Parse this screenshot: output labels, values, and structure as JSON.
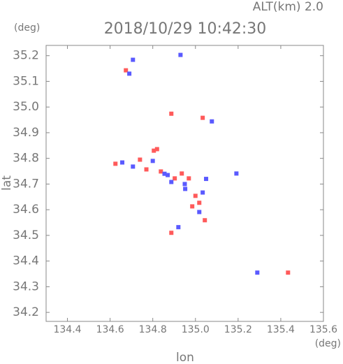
{
  "chart_data": {
    "type": "scatter",
    "title": "2018/10/29 10:42:30",
    "subtitle": "ALT(km)  2.0",
    "y_unit": "(deg)",
    "x_unit": "(deg)",
    "x_label": "lon",
    "y_label": "lat",
    "xlim": [
      134.3,
      135.6
    ],
    "ylim": [
      34.165,
      35.24
    ],
    "xticks": [
      134.4,
      134.6,
      134.8,
      {
        "value": 135.0,
        "label": "135.0"
      },
      135.2,
      135.4,
      135.6
    ],
    "yticks": [
      34.2,
      34.3,
      34.4,
      34.5,
      34.6,
      34.7,
      34.8,
      34.9,
      {
        "value": 35.0,
        "label": "35.0"
      },
      35.1,
      35.2
    ],
    "series": [
      {
        "color": "#ff5a5a",
        "x": [
          134.625,
          134.674,
          134.887,
          135.034,
          134.805,
          134.82,
          134.838,
          134.903,
          134.969,
          135.0,
          135.018,
          135.044,
          134.887,
          134.77,
          134.74,
          135.434,
          134.936,
          134.985
        ],
        "y": [
          34.779,
          35.143,
          34.974,
          34.958,
          34.83,
          34.836,
          34.749,
          34.722,
          34.722,
          34.654,
          34.627,
          34.559,
          34.51,
          34.757,
          34.795,
          34.355,
          34.741,
          34.613
        ]
      },
      {
        "color": "#5a5aff",
        "x": [
          134.707,
          134.69,
          135.077,
          134.657,
          134.707,
          134.87,
          134.887,
          134.952,
          135.034,
          135.018,
          134.92,
          135.192,
          134.93,
          135.29,
          134.855,
          134.95,
          134.8,
          135.05
        ],
        "y": [
          35.184,
          35.13,
          34.944,
          34.784,
          34.768,
          34.735,
          34.708,
          34.681,
          34.667,
          34.591,
          34.532,
          34.741,
          35.203,
          34.355,
          34.74,
          34.7,
          34.79,
          34.72
        ]
      }
    ]
  }
}
